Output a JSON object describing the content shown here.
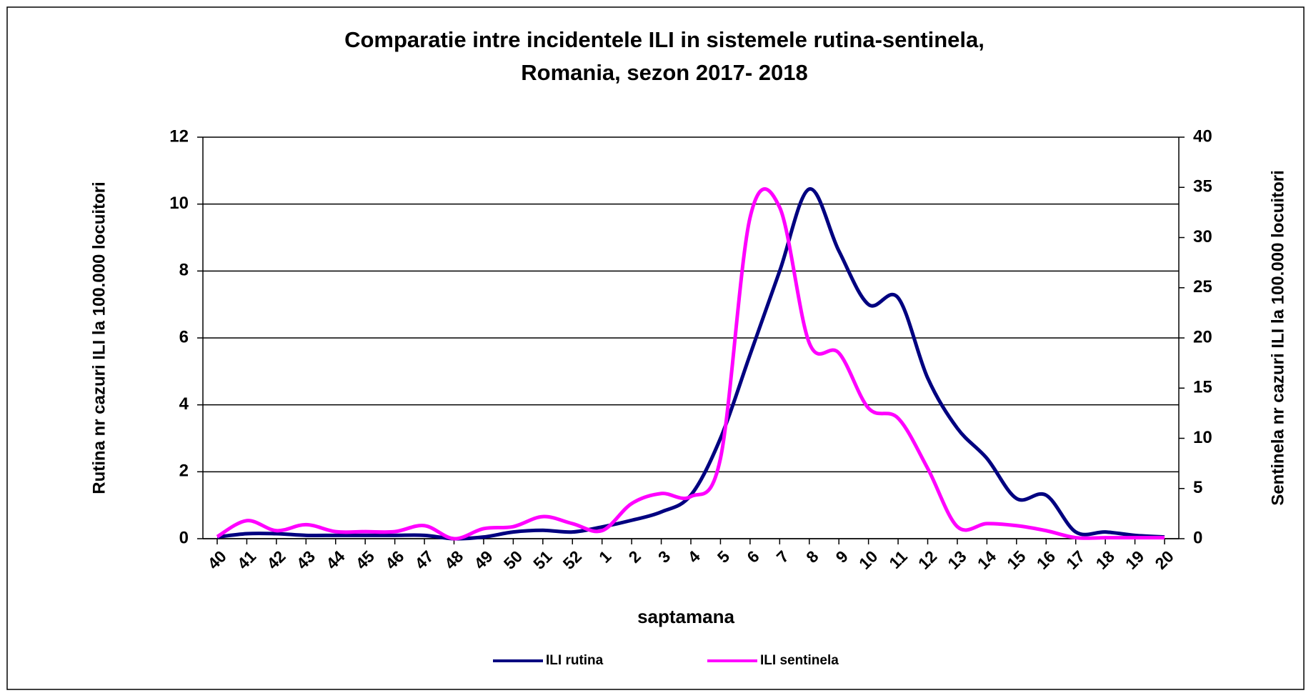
{
  "chart_data": {
    "type": "line",
    "title": "Comparatie  intre incidentele ILI in sistemele rutina-sentinela,",
    "subtitle": "Romania,  sezon 2017- 2018",
    "x_label": "saptamana",
    "y_label": "Rutina nr cazuri ILI la 100.000 locuitori",
    "y2_label": "Sentinela nr cazuri ILI la 100.000  locuitori",
    "categories": [
      "40",
      "41",
      "42",
      "43",
      "44",
      "45",
      "46",
      "47",
      "48",
      "49",
      "50",
      "51",
      "52",
      "1",
      "2",
      "3",
      "4",
      "5",
      "6",
      "7",
      "8",
      "9",
      "10",
      "11",
      "12",
      "13",
      "14",
      "15",
      "16",
      "17",
      "18",
      "19",
      "20"
    ],
    "series": [
      {
        "name": "ILI rutina",
        "color": "#000080",
        "values": [
          0.05,
          0.15,
          0.15,
          0.1,
          0.1,
          0.1,
          0.1,
          0.1,
          0.0,
          0.05,
          0.2,
          0.25,
          0.2,
          0.35,
          0.55,
          0.8,
          1.3,
          3.0,
          5.5,
          8.0,
          10.45,
          8.6,
          7.0,
          7.2,
          4.8,
          3.3,
          2.4,
          1.2,
          1.3,
          0.2,
          0.2,
          0.1,
          0.05
        ]
      },
      {
        "name": "ILI sentinela",
        "color": "#ff00ff",
        "axis": "y2",
        "values": [
          0.2,
          1.8,
          0.8,
          1.4,
          0.7,
          0.7,
          0.7,
          1.3,
          0,
          1.0,
          1.2,
          2.2,
          1.5,
          0.8,
          3.5,
          4.5,
          4.2,
          8,
          32,
          33,
          19.5,
          18.5,
          13,
          12,
          7,
          1.2,
          1.5,
          1.3,
          0.8,
          0.1,
          0.1,
          0.1,
          0.1
        ]
      }
    ],
    "ylim": [
      0,
      12
    ],
    "yticks": [
      0,
      2,
      4,
      6,
      8,
      10,
      12
    ],
    "y2lim": [
      0,
      40
    ],
    "y2ticks": [
      0,
      5,
      10,
      15,
      20,
      25,
      30,
      35,
      40
    ],
    "grid": true,
    "legend": "bottom"
  }
}
